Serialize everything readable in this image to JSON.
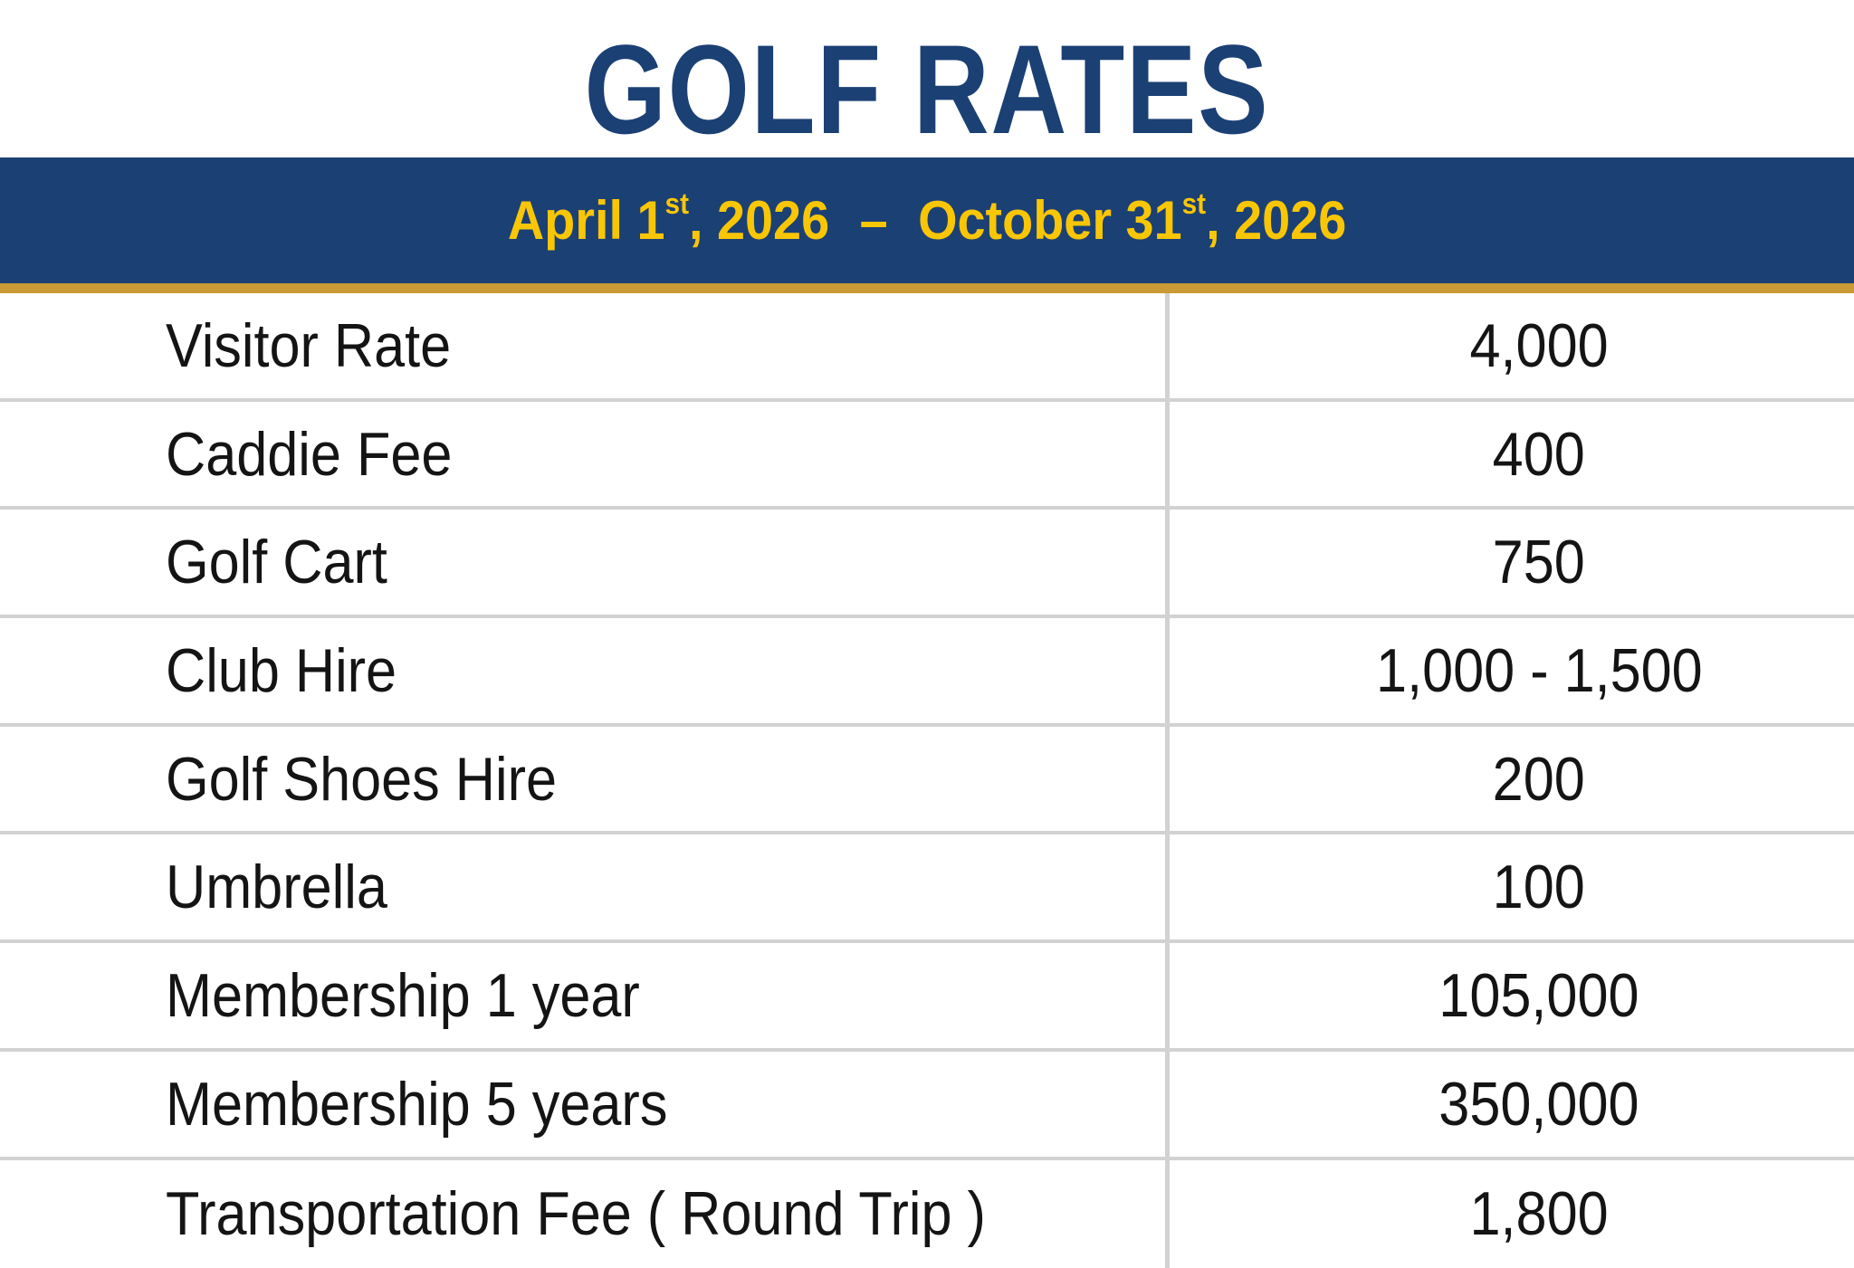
{
  "title": {
    "text": "GOLF RATES"
  },
  "banner": {
    "start_text": "April 1",
    "start_sup": "st",
    "start_rest": ", 2026",
    "dash": "–",
    "end_text": "October 31",
    "end_sup": "st",
    "end_rest": ", 2026"
  },
  "table": {
    "rows": [
      {
        "label": "Visitor Rate",
        "value": "4,000"
      },
      {
        "label": "Caddie Fee",
        "value": "400"
      },
      {
        "label": "Golf Cart",
        "value": "750"
      },
      {
        "label": "Club Hire",
        "value": "1,000 - 1,500"
      },
      {
        "label": "Golf Shoes Hire",
        "value": "200"
      },
      {
        "label": "Umbrella",
        "value": "100"
      },
      {
        "label": "Membership 1 year",
        "value": "105,000"
      },
      {
        "label": "Membership 5 years",
        "value": "350,000"
      },
      {
        "label": "Transportation Fee ( Round Trip )",
        "value": "1,800"
      }
    ]
  },
  "colors": {
    "navy": "#1B4074",
    "yellow": "#F9C606",
    "gold_bar": "#C99A35",
    "divider_gray": "#D2D2D2",
    "text_black": "#141414",
    "background": "#FFFFFF"
  }
}
